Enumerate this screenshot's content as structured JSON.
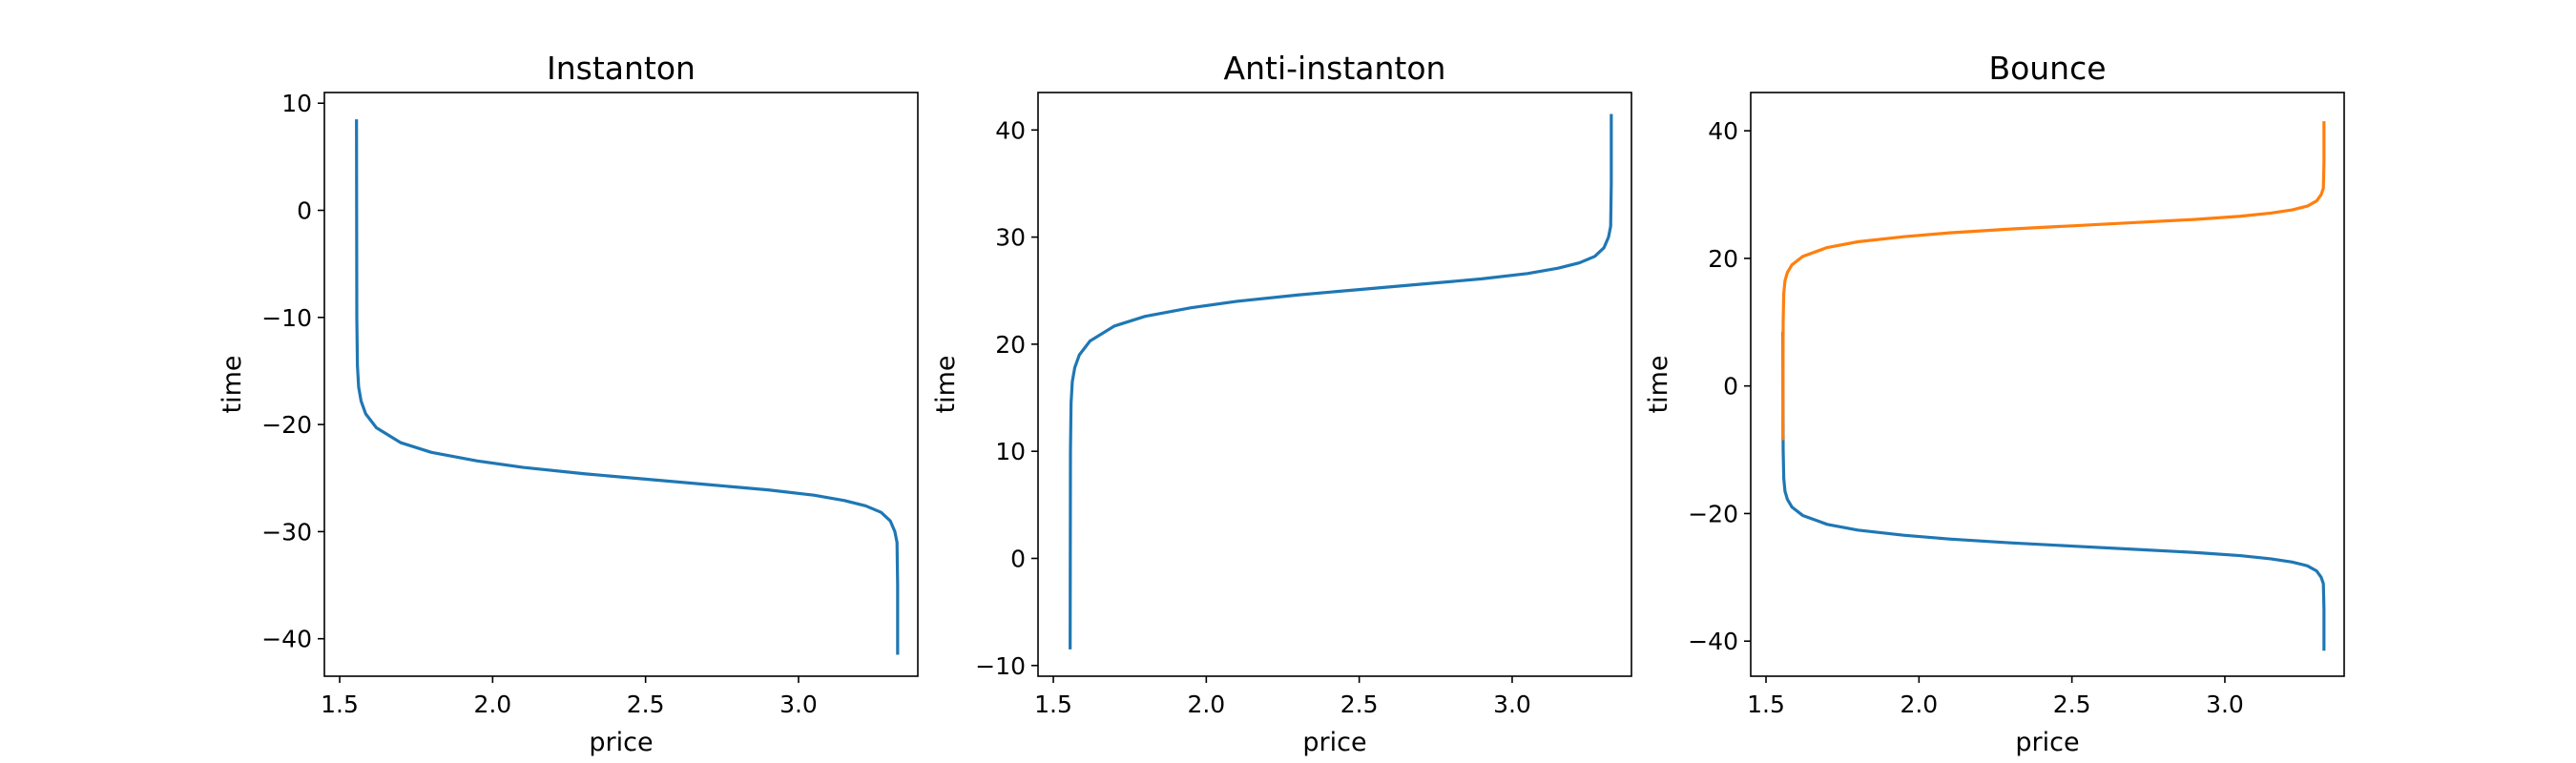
{
  "chart_data": [
    {
      "type": "line",
      "title": "Instanton",
      "xlabel": "price",
      "ylabel": "time",
      "xlim": [
        1.45,
        3.39
      ],
      "ylim": [
        -43.5,
        11.0
      ],
      "xticks": [
        1.5,
        2.0,
        2.5,
        3.0
      ],
      "xtick_labels": [
        "1.5",
        "2.0",
        "2.5",
        "3.0"
      ],
      "yticks": [
        -40,
        -30,
        -20,
        -10,
        0,
        10
      ],
      "ytick_labels": [
        "−40",
        "−30",
        "−20",
        "−10",
        "0",
        "10"
      ],
      "grid": false,
      "series": [
        {
          "color": "#1f77b4",
          "x": [
            1.555,
            1.556,
            1.558,
            1.562,
            1.57,
            1.585,
            1.62,
            1.7,
            1.8,
            1.95,
            2.1,
            2.3,
            2.5,
            2.7,
            2.9,
            3.05,
            3.15,
            3.22,
            3.27,
            3.3,
            3.315,
            3.322,
            3.324,
            3.324
          ],
          "y": [
            8.5,
            -10.0,
            -14.5,
            -16.5,
            -17.8,
            -19.0,
            -20.3,
            -21.7,
            -22.6,
            -23.4,
            -24.0,
            -24.6,
            -25.1,
            -25.6,
            -26.1,
            -26.6,
            -27.1,
            -27.6,
            -28.2,
            -29.0,
            -30.0,
            -31.0,
            -35.0,
            -41.5
          ]
        }
      ]
    },
    {
      "type": "line",
      "title": "Anti-instanton",
      "xlabel": "price",
      "ylabel": "time",
      "xlim": [
        1.45,
        3.39
      ],
      "ylim": [
        -11.0,
        43.5
      ],
      "xticks": [
        1.5,
        2.0,
        2.5,
        3.0
      ],
      "xtick_labels": [
        "1.5",
        "2.0",
        "2.5",
        "3.0"
      ],
      "yticks": [
        -10,
        0,
        10,
        20,
        30,
        40
      ],
      "ytick_labels": [
        "−10",
        "0",
        "10",
        "20",
        "30",
        "40"
      ],
      "grid": false,
      "series": [
        {
          "color": "#1f77b4",
          "x": [
            1.555,
            1.556,
            1.558,
            1.562,
            1.57,
            1.585,
            1.62,
            1.7,
            1.8,
            1.95,
            2.1,
            2.3,
            2.5,
            2.7,
            2.9,
            3.05,
            3.15,
            3.22,
            3.27,
            3.3,
            3.315,
            3.322,
            3.324,
            3.324
          ],
          "y": [
            -8.5,
            10.0,
            14.5,
            16.5,
            17.8,
            19.0,
            20.3,
            21.7,
            22.6,
            23.4,
            24.0,
            24.6,
            25.1,
            25.6,
            26.1,
            26.6,
            27.1,
            27.6,
            28.2,
            29.0,
            30.0,
            31.0,
            35.0,
            41.5
          ]
        }
      ]
    },
    {
      "type": "line",
      "title": "Bounce",
      "xlabel": "price",
      "ylabel": "time",
      "xlim": [
        1.45,
        3.39
      ],
      "ylim": [
        -45.5,
        46.0
      ],
      "xticks": [
        1.5,
        2.0,
        2.5,
        3.0
      ],
      "xtick_labels": [
        "1.5",
        "2.0",
        "2.5",
        "3.0"
      ],
      "yticks": [
        -40,
        -20,
        0,
        20,
        40
      ],
      "ytick_labels": [
        "−40",
        "−20",
        "0",
        "20",
        "40"
      ],
      "grid": false,
      "series": [
        {
          "color": "#1f77b4",
          "x": [
            1.555,
            1.556,
            1.558,
            1.562,
            1.57,
            1.585,
            1.62,
            1.7,
            1.8,
            1.95,
            2.1,
            2.3,
            2.5,
            2.7,
            2.9,
            3.05,
            3.15,
            3.22,
            3.27,
            3.3,
            3.315,
            3.322,
            3.324,
            3.324
          ],
          "y": [
            8.5,
            -10.0,
            -14.5,
            -16.5,
            -17.8,
            -19.0,
            -20.3,
            -21.7,
            -22.6,
            -23.4,
            -24.0,
            -24.6,
            -25.1,
            -25.6,
            -26.1,
            -26.6,
            -27.1,
            -27.6,
            -28.2,
            -29.0,
            -30.0,
            -31.0,
            -35.0,
            -41.5
          ]
        },
        {
          "color": "#ff7f0e",
          "x": [
            1.555,
            1.556,
            1.558,
            1.562,
            1.57,
            1.585,
            1.62,
            1.7,
            1.8,
            1.95,
            2.1,
            2.3,
            2.5,
            2.7,
            2.9,
            3.05,
            3.15,
            3.22,
            3.27,
            3.3,
            3.315,
            3.322,
            3.324,
            3.324
          ],
          "y": [
            -8.5,
            10.0,
            14.5,
            16.5,
            17.8,
            19.0,
            20.3,
            21.7,
            22.6,
            23.4,
            24.0,
            24.6,
            25.1,
            25.6,
            26.1,
            26.6,
            27.1,
            27.6,
            28.2,
            29.0,
            30.0,
            31.0,
            35.0,
            41.5
          ]
        }
      ]
    }
  ]
}
